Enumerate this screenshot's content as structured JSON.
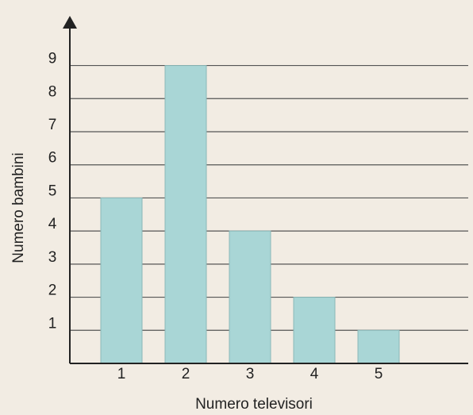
{
  "chart_data": {
    "type": "bar",
    "xlabel": "Numero televisori",
    "ylabel": "Numero bambini",
    "categories": [
      "1",
      "2",
      "3",
      "4",
      "5"
    ],
    "values": [
      5,
      9,
      4,
      2,
      1
    ],
    "color": "#a9d6d6",
    "ylim": [
      0,
      10.5
    ],
    "yticks": [
      1,
      2,
      3,
      4,
      5,
      6,
      7,
      8,
      9
    ],
    "grid": true
  }
}
